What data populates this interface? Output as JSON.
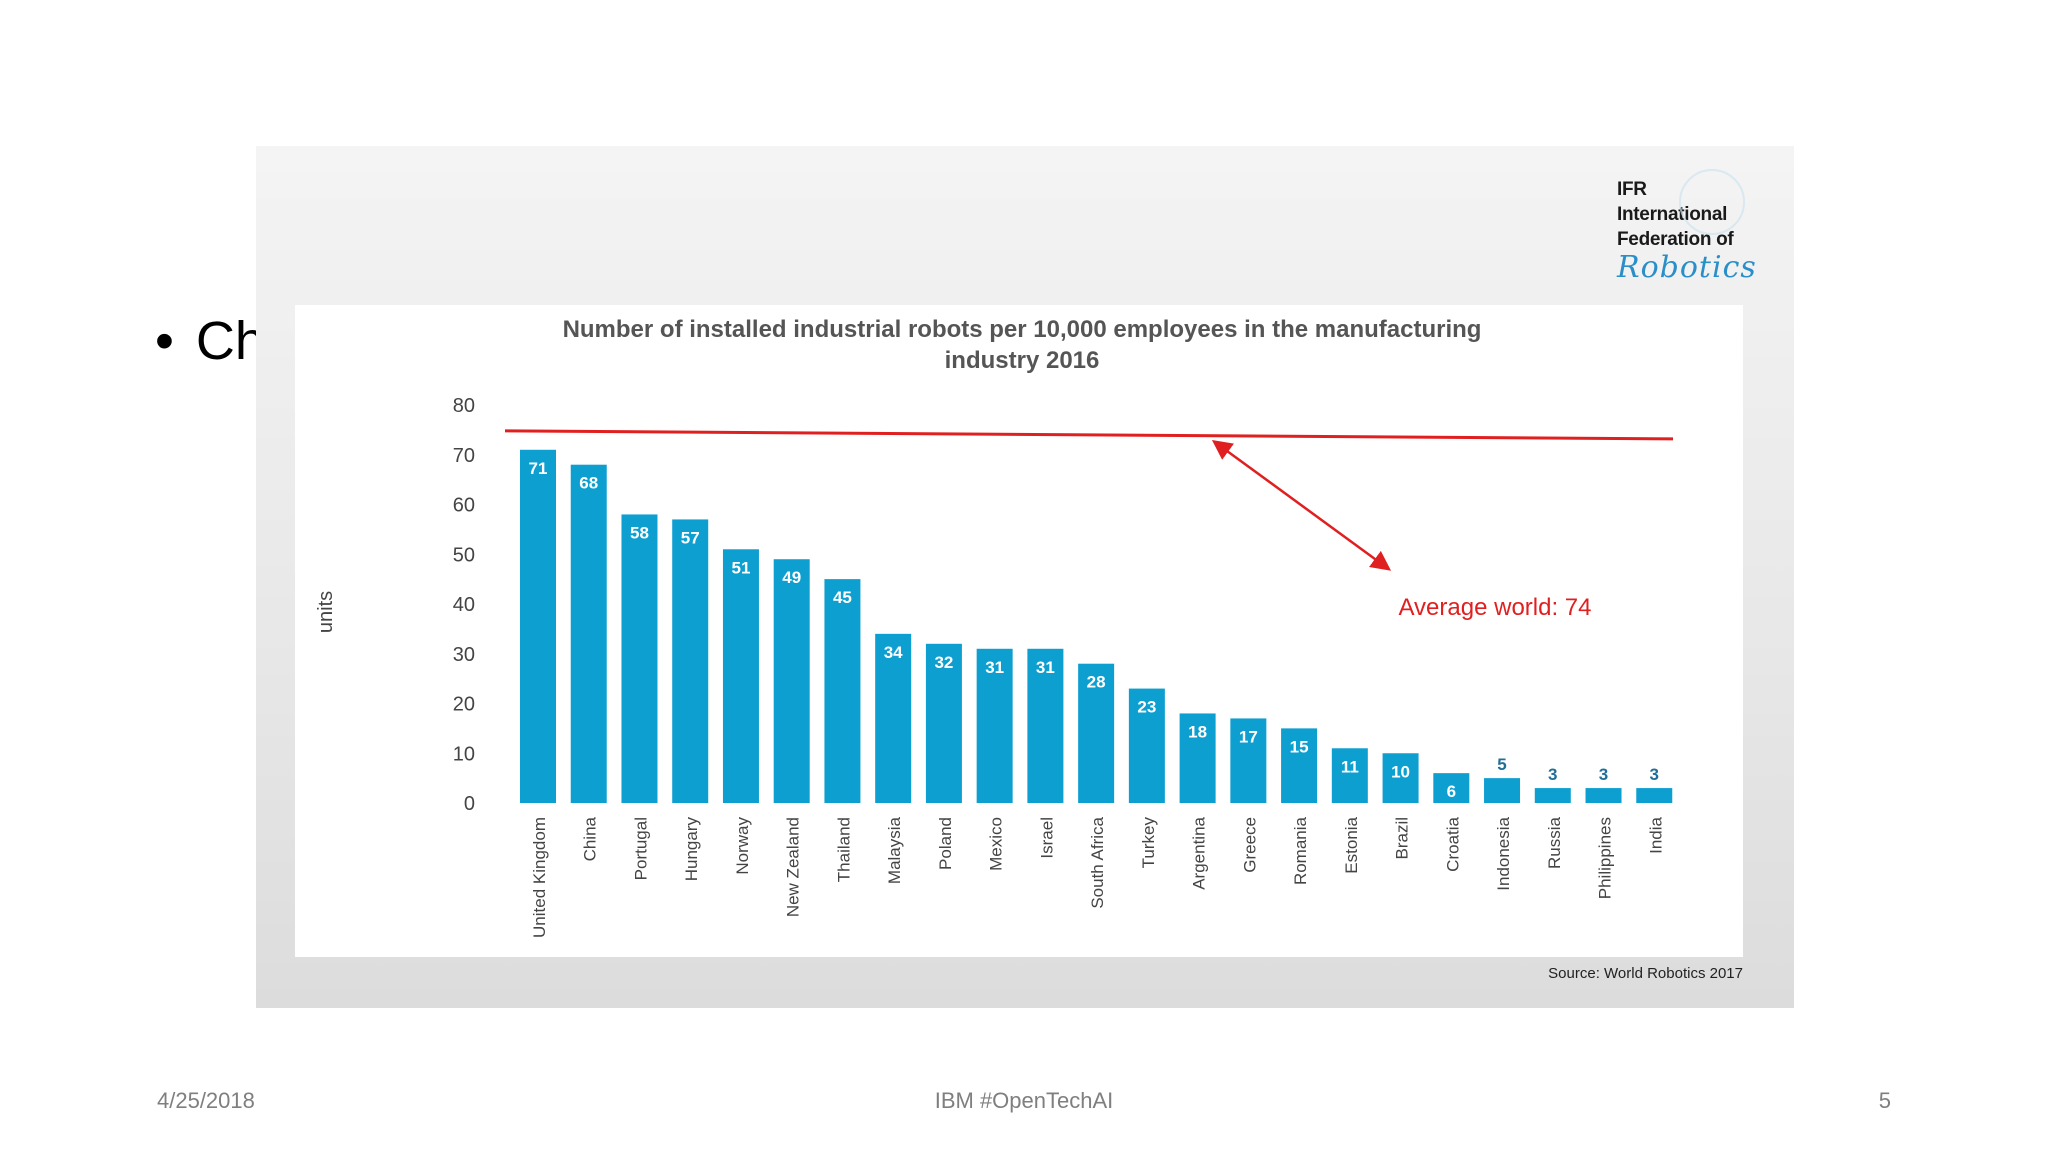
{
  "slide": {
    "bullet_text": "Ch",
    "footer_date": "4/25/2018",
    "footer_center": "IBM #OpenTechAI",
    "footer_page": "5"
  },
  "logo": {
    "line1": "IFR",
    "line2": "International",
    "line3": "Federation of",
    "line4": "Robotics"
  },
  "source": "Source: World Robotics 2017",
  "colors": {
    "bar": "#0e9fd1",
    "average_line": "#e02020",
    "label_dark": "#1f6f99"
  },
  "chart_data": {
    "type": "bar",
    "title": "Number of installed industrial robots per 10,000 employees in the manufacturing industry 2016",
    "title_line1": "Number of installed industrial robots per 10,000 employees in the manufacturing",
    "title_line2": "industry 2016",
    "ylabel": "units",
    "ylim": [
      0,
      80
    ],
    "yticks": [
      0,
      10,
      20,
      30,
      40,
      50,
      60,
      70,
      80
    ],
    "categories": [
      "United Kingdom",
      "China",
      "Portugal",
      "Hungary",
      "Norway",
      "New Zealand",
      "Thailand",
      "Malaysia",
      "Poland",
      "Mexico",
      "Israel",
      "South Africa",
      "Turkey",
      "Argentina",
      "Greece",
      "Romania",
      "Estonia",
      "Brazil",
      "Croatia",
      "Indonesia",
      "Russia",
      "Philippines",
      "India"
    ],
    "values": [
      71,
      68,
      58,
      57,
      51,
      49,
      45,
      34,
      32,
      31,
      31,
      28,
      23,
      18,
      17,
      15,
      11,
      10,
      6,
      5,
      3,
      3,
      3
    ],
    "reference_line": {
      "value": 74,
      "label": "Average world: 74"
    }
  }
}
